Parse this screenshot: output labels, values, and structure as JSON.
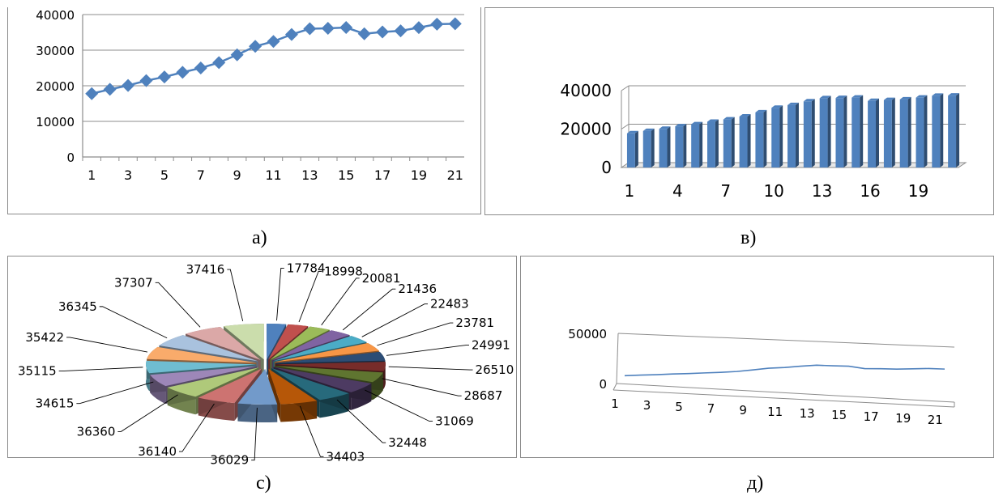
{
  "colors": {
    "series": "#4f81bd",
    "pie_palette": [
      "#4f81bd",
      "#c0504d",
      "#9bbb59",
      "#8064a2",
      "#4bacc6",
      "#f79646",
      "#2c4d75",
      "#772c2a",
      "#5f7530",
      "#4d3b62",
      "#276a7c",
      "#b65708",
      "#729aca",
      "#cd7371",
      "#afc97a",
      "#9d87b8",
      "#6fbdd1",
      "#f9ab6b",
      "#a9c2de",
      "#dba8a7",
      "#cbddac"
    ],
    "grid": "#8c8c8c"
  },
  "captions": {
    "a": "а)",
    "b": "в)",
    "c": "с)",
    "d": "д)"
  },
  "chart_data": [
    {
      "id": "a",
      "type": "line",
      "markers": "diamond",
      "x": [
        1,
        2,
        3,
        4,
        5,
        6,
        7,
        8,
        9,
        10,
        11,
        12,
        13,
        14,
        15,
        16,
        17,
        18,
        19,
        20,
        21
      ],
      "values": [
        17784,
        18998,
        20081,
        21436,
        22483,
        23781,
        24991,
        26510,
        28687,
        31069,
        32448,
        34403,
        36029,
        36140,
        36360,
        34615,
        35115,
        35422,
        36345,
        37307,
        37416
      ],
      "x_tick_labels": [
        "1",
        "3",
        "5",
        "7",
        "9",
        "11",
        "13",
        "15",
        "17",
        "19",
        "21"
      ],
      "y_tick_labels": [
        "0",
        "10000",
        "20000",
        "30000",
        "40000"
      ],
      "ylim": [
        0,
        40000
      ],
      "grid": true
    },
    {
      "id": "b",
      "type": "bar",
      "style": "3d-column",
      "x": [
        1,
        2,
        3,
        4,
        5,
        6,
        7,
        8,
        9,
        10,
        11,
        12,
        13,
        14,
        15,
        16,
        17,
        18,
        19,
        20,
        21
      ],
      "values": [
        17784,
        18998,
        20081,
        21436,
        22483,
        23781,
        24991,
        26510,
        28687,
        31069,
        32448,
        34403,
        36029,
        36140,
        36360,
        34615,
        35115,
        35422,
        36345,
        37307,
        37416
      ],
      "x_tick_labels": [
        "1",
        "4",
        "7",
        "10",
        "13",
        "16",
        "19"
      ],
      "y_tick_labels": [
        "0",
        "20000",
        "40000"
      ],
      "ylim": [
        0,
        40000
      ],
      "grid": true
    },
    {
      "id": "c",
      "type": "pie",
      "style": "3d-exploded",
      "values": [
        17784,
        18998,
        20081,
        21436,
        22483,
        23781,
        24991,
        26510,
        28687,
        31069,
        32448,
        34403,
        36029,
        36140,
        36360,
        34615,
        35115,
        35422,
        36345,
        37307,
        37416
      ],
      "data_labels": [
        "17784",
        "18998",
        "20081",
        "21436",
        "22483",
        "23781",
        "24991",
        "26510",
        "28687",
        "31069",
        "32448",
        "34403",
        "36029",
        "36140",
        "36360",
        "34615",
        "35115",
        "35422",
        "36345",
        "37307",
        "37416"
      ]
    },
    {
      "id": "d",
      "type": "line",
      "style": "3d",
      "x": [
        1,
        2,
        3,
        4,
        5,
        6,
        7,
        8,
        9,
        10,
        11,
        12,
        13,
        14,
        15,
        16,
        17,
        18,
        19,
        20,
        21
      ],
      "values": [
        17784,
        18998,
        20081,
        21436,
        22483,
        23781,
        24991,
        26510,
        28687,
        31069,
        32448,
        34403,
        36029,
        36140,
        36360,
        34615,
        35115,
        35422,
        36345,
        37307,
        37416
      ],
      "x_tick_labels": [
        "1",
        "3",
        "5",
        "7",
        "9",
        "11",
        "13",
        "15",
        "17",
        "19",
        "21"
      ],
      "y_tick_labels": [
        "0",
        "50000"
      ],
      "ylim": [
        0,
        50000
      ]
    }
  ]
}
